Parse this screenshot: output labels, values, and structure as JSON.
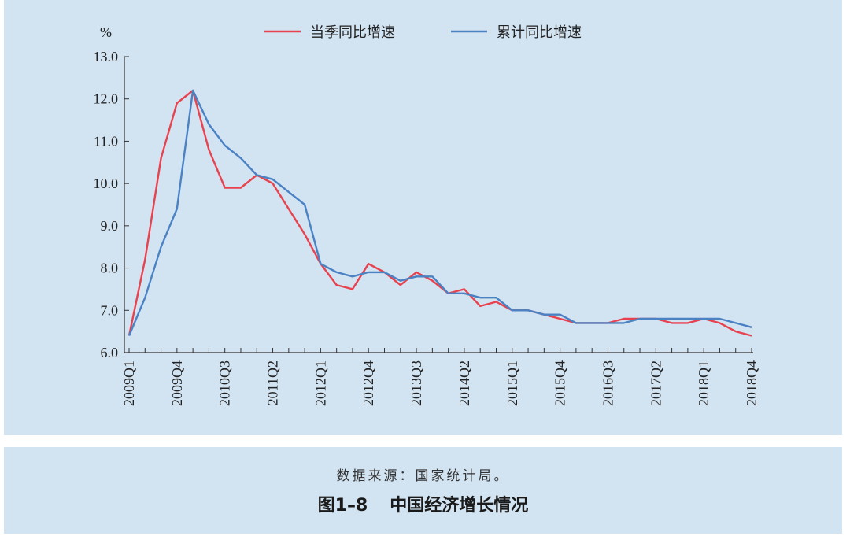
{
  "chart_data": {
    "type": "line",
    "unit_label": "%",
    "ylim": [
      6.0,
      13.0
    ],
    "y_ticks": [
      "6.0",
      "7.0",
      "8.0",
      "9.0",
      "10.0",
      "11.0",
      "12.0",
      "13.0"
    ],
    "x": [
      "2009Q1",
      "2009Q2",
      "2009Q3",
      "2009Q4",
      "2010Q1",
      "2010Q2",
      "2010Q3",
      "2010Q4",
      "2011Q1",
      "2011Q2",
      "2011Q3",
      "2011Q4",
      "2012Q1",
      "2012Q2",
      "2012Q3",
      "2012Q4",
      "2013Q1",
      "2013Q2",
      "2013Q3",
      "2013Q4",
      "2014Q1",
      "2014Q2",
      "2014Q3",
      "2014Q4",
      "2015Q1",
      "2015Q2",
      "2015Q3",
      "2015Q4",
      "2016Q1",
      "2016Q2",
      "2016Q3",
      "2016Q4",
      "2017Q1",
      "2017Q2",
      "2017Q3",
      "2017Q4",
      "2018Q1",
      "2018Q2",
      "2018Q3",
      "2018Q4"
    ],
    "x_tick_labels": [
      "2009Q1",
      "2009Q4",
      "2010Q3",
      "2011Q2",
      "2012Q1",
      "2012Q4",
      "2013Q3",
      "2014Q2",
      "2015Q1",
      "2015Q4",
      "2016Q3",
      "2017Q2",
      "2018Q1",
      "2018Q4"
    ],
    "series": [
      {
        "name": "当季同比增速",
        "color": "#e8424f",
        "values": [
          6.4,
          8.2,
          10.6,
          11.9,
          12.2,
          10.8,
          9.9,
          9.9,
          10.2,
          10.0,
          9.4,
          8.8,
          8.1,
          7.6,
          7.5,
          8.1,
          7.9,
          7.6,
          7.9,
          7.7,
          7.4,
          7.5,
          7.1,
          7.2,
          7.0,
          7.0,
          6.9,
          6.8,
          6.7,
          6.7,
          6.7,
          6.8,
          6.8,
          6.8,
          6.7,
          6.7,
          6.8,
          6.7,
          6.5,
          6.4
        ]
      },
      {
        "name": "累计同比增速",
        "color": "#4a82c3",
        "values": [
          6.4,
          7.3,
          8.5,
          9.4,
          12.2,
          11.4,
          10.9,
          10.6,
          10.2,
          10.1,
          9.8,
          9.5,
          8.1,
          7.9,
          7.8,
          7.9,
          7.9,
          7.7,
          7.8,
          7.8,
          7.4,
          7.4,
          7.3,
          7.3,
          7.0,
          7.0,
          6.9,
          6.9,
          6.7,
          6.7,
          6.7,
          6.7,
          6.8,
          6.8,
          6.8,
          6.8,
          6.8,
          6.8,
          6.7,
          6.6
        ]
      }
    ]
  },
  "caption": {
    "source": "数据来源：国家统计局。",
    "figure_number": "图1–8",
    "figure_title": "中国经济增长情况"
  }
}
